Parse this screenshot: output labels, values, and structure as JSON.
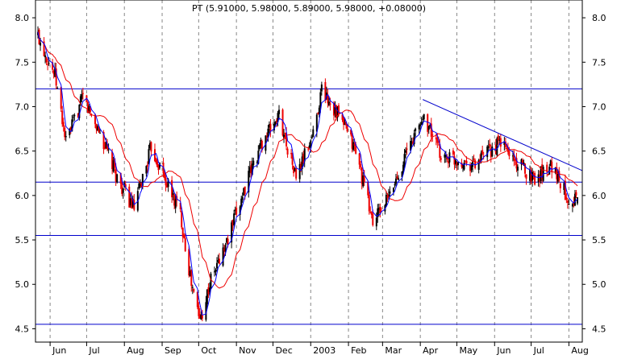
{
  "chart_data": {
    "type": "candlestick",
    "title": "PT (5.91000, 5.98000, 5.89000, 5.98000, +0.08000)",
    "ylim": [
      4.35,
      8.2
    ],
    "y_ticks": [
      4.5,
      5.0,
      5.5,
      6.0,
      6.5,
      7.0,
      7.5,
      8.0
    ],
    "y_tick_labels": [
      "4.5",
      "5.0",
      "5.5",
      "6.0",
      "6.5",
      "7.0",
      "7.5",
      "8.0"
    ],
    "month_labels": [
      "Jun",
      "Jul",
      "Aug",
      "Sep",
      "Oct",
      "Nov",
      "Dec",
      "2003",
      "Feb",
      "Mar",
      "Apr",
      "May",
      "Jun",
      "Jul",
      "Aug"
    ],
    "horizontal_levels": [
      7.2,
      6.15,
      5.55,
      4.55
    ],
    "trendline": {
      "from": [
        "Apr 2003",
        7.08
      ],
      "to": [
        "Aug 2003",
        6.28
      ]
    },
    "price_path": [
      {
        "date": "2002-05-22",
        "close": 7.8
      },
      {
        "date": "2002-06-05",
        "close": 7.35
      },
      {
        "date": "2002-06-14",
        "close": 6.6
      },
      {
        "date": "2002-06-28",
        "close": 7.1
      },
      {
        "date": "2002-07-12",
        "close": 6.7
      },
      {
        "date": "2002-07-26",
        "close": 6.2
      },
      {
        "date": "2002-08-09",
        "close": 5.85
      },
      {
        "date": "2002-08-23",
        "close": 6.55
      },
      {
        "date": "2002-09-06",
        "close": 6.1
      },
      {
        "date": "2002-09-16",
        "close": 5.8
      },
      {
        "date": "2002-09-25",
        "close": 5.0
      },
      {
        "date": "2002-10-02",
        "close": 4.6
      },
      {
        "date": "2002-10-11",
        "close": 5.05
      },
      {
        "date": "2002-10-25",
        "close": 5.5
      },
      {
        "date": "2002-11-08",
        "close": 6.1
      },
      {
        "date": "2002-11-22",
        "close": 6.6
      },
      {
        "date": "2002-12-06",
        "close": 6.9
      },
      {
        "date": "2002-12-20",
        "close": 6.2
      },
      {
        "date": "2003-01-03",
        "close": 6.7
      },
      {
        "date": "2003-01-10",
        "close": 7.2
      },
      {
        "date": "2003-01-24",
        "close": 6.9
      },
      {
        "date": "2003-02-07",
        "close": 6.5
      },
      {
        "date": "2003-02-21",
        "close": 5.7
      },
      {
        "date": "2003-03-07",
        "close": 6.0
      },
      {
        "date": "2003-03-21",
        "close": 6.5
      },
      {
        "date": "2003-04-04",
        "close": 6.9
      },
      {
        "date": "2003-04-18",
        "close": 6.45
      },
      {
        "date": "2003-05-02",
        "close": 6.4
      },
      {
        "date": "2003-05-16",
        "close": 6.35
      },
      {
        "date": "2003-06-06",
        "close": 6.6
      },
      {
        "date": "2003-06-20",
        "close": 6.35
      },
      {
        "date": "2003-07-04",
        "close": 6.2
      },
      {
        "date": "2003-07-18",
        "close": 6.35
      },
      {
        "date": "2003-08-01",
        "close": 5.95
      },
      {
        "date": "2003-08-08",
        "close": 5.98
      }
    ],
    "colors": {
      "level_line": "#0000cc",
      "trendline": "#0000cc",
      "ma_short": "#0000ff",
      "ma_long": "#ee0000",
      "candle_up": "#000000",
      "candle_down": "#ee0000",
      "grid": "#888888"
    }
  }
}
